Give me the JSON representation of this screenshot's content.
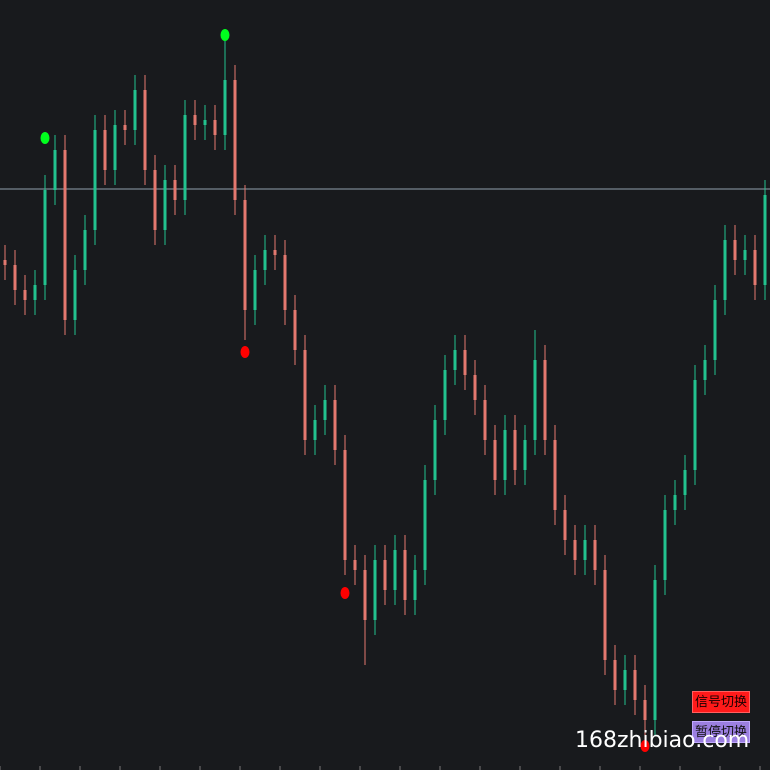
{
  "chart_data": {
    "type": "candlestick",
    "ylim": [
      0,
      770
    ],
    "up_color": "#22c38f",
    "down_color": "#e3786f",
    "open": [
      510,
      505,
      480,
      470,
      485,
      580,
      620,
      450,
      500,
      540,
      640,
      600,
      645,
      640,
      680,
      600,
      540,
      590,
      570,
      655,
      645,
      650,
      635,
      690,
      570,
      460,
      500,
      520,
      515,
      460,
      420,
      330,
      350,
      370,
      320,
      210,
      200,
      150,
      210,
      180,
      220,
      170,
      200,
      290,
      350,
      400,
      420,
      395,
      370,
      330,
      290,
      340,
      300,
      330,
      410,
      330,
      260,
      230,
      210,
      230,
      200,
      110,
      80,
      100,
      70,
      50,
      190,
      260,
      275,
      300,
      390,
      410,
      470,
      530,
      510,
      520,
      485
    ],
    "high": [
      525,
      520,
      495,
      500,
      595,
      635,
      635,
      515,
      555,
      655,
      655,
      660,
      660,
      695,
      695,
      615,
      605,
      605,
      670,
      670,
      665,
      665,
      735,
      705,
      585,
      515,
      535,
      535,
      530,
      475,
      435,
      365,
      385,
      385,
      335,
      225,
      215,
      225,
      225,
      235,
      235,
      215,
      305,
      365,
      415,
      435,
      435,
      410,
      385,
      345,
      355,
      355,
      345,
      440,
      425,
      345,
      275,
      245,
      245,
      245,
      215,
      125,
      115,
      115,
      85,
      205,
      275,
      290,
      315,
      405,
      425,
      485,
      545,
      545,
      535,
      535,
      590
    ],
    "low": [
      490,
      465,
      455,
      455,
      470,
      565,
      435,
      435,
      485,
      525,
      585,
      585,
      625,
      625,
      585,
      525,
      525,
      555,
      555,
      630,
      630,
      620,
      620,
      555,
      430,
      445,
      485,
      500,
      445,
      405,
      315,
      315,
      335,
      305,
      195,
      185,
      105,
      135,
      165,
      165,
      155,
      155,
      185,
      275,
      335,
      385,
      380,
      355,
      315,
      275,
      275,
      285,
      285,
      315,
      315,
      245,
      215,
      195,
      195,
      185,
      95,
      65,
      65,
      55,
      20,
      35,
      175,
      245,
      260,
      285,
      375,
      395,
      455,
      495,
      495,
      470,
      470
    ],
    "close": [
      505,
      480,
      470,
      485,
      580,
      620,
      450,
      500,
      540,
      640,
      600,
      645,
      640,
      680,
      600,
      540,
      590,
      570,
      655,
      645,
      650,
      635,
      690,
      570,
      460,
      500,
      520,
      515,
      460,
      420,
      330,
      350,
      370,
      320,
      210,
      200,
      150,
      210,
      180,
      220,
      170,
      200,
      290,
      350,
      400,
      420,
      395,
      370,
      330,
      290,
      340,
      300,
      330,
      410,
      330,
      260,
      230,
      210,
      230,
      200,
      110,
      80,
      100,
      70,
      50,
      190,
      260,
      275,
      300,
      390,
      410,
      470,
      530,
      510,
      520,
      485,
      575
    ],
    "hline": 581,
    "hline_color": "#8fa0ad",
    "signals": [
      {
        "index": 4,
        "value": 632,
        "color": "#00ff1e"
      },
      {
        "index": 22,
        "value": 735,
        "color": "#00ff1e"
      },
      {
        "index": 24,
        "value": 418,
        "color": "#ff0000"
      },
      {
        "index": 34,
        "value": 177,
        "color": "#ff0000"
      },
      {
        "index": 64,
        "value": 24,
        "color": "#ff0000"
      }
    ]
  },
  "buttons": [
    "信号切换",
    "暂停切换"
  ],
  "watermark": "168zhibiao.com"
}
